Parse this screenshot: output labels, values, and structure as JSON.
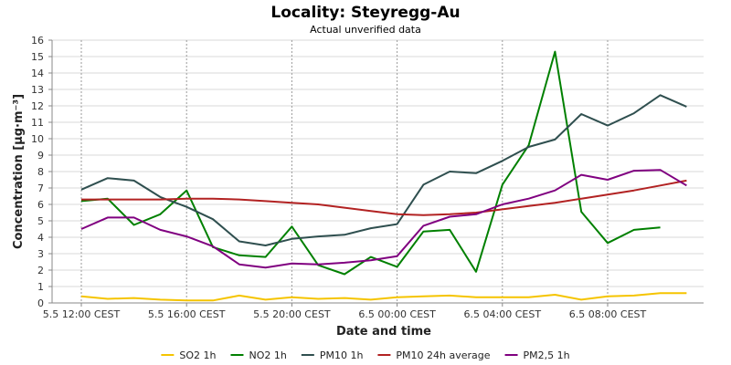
{
  "chart_data": {
    "type": "line",
    "title": "Locality: Steyregg-Au",
    "subtitle": "Actual unverified data",
    "xlabel": "Date and time",
    "ylabel": "Concentration [µg·m⁻³]",
    "ylim": [
      0,
      16
    ],
    "y_ticks": [
      0,
      1,
      2,
      3,
      4,
      5,
      6,
      7,
      8,
      9,
      10,
      11,
      12,
      13,
      14,
      15,
      16
    ],
    "x": [
      "5.5 12:00",
      "5.5 13:00",
      "5.5 14:00",
      "5.5 15:00",
      "5.5 16:00",
      "5.5 17:00",
      "5.5 18:00",
      "5.5 19:00",
      "5.5 20:00",
      "5.5 21:00",
      "5.5 22:00",
      "5.5 23:00",
      "6.5 00:00",
      "6.5 01:00",
      "6.5 02:00",
      "6.5 03:00",
      "6.5 04:00",
      "6.5 05:00",
      "6.5 06:00",
      "6.5 07:00",
      "6.5 08:00",
      "6.5 09:00",
      "6.5 10:00",
      "6.5 11:00"
    ],
    "x_ticks": [
      {
        "index": 0,
        "label": "5.5 12:00 CEST"
      },
      {
        "index": 4,
        "label": "5.5 16:00 CEST"
      },
      {
        "index": 8,
        "label": "5.5 20:00 CEST"
      },
      {
        "index": 12,
        "label": "6.5 00:00 CEST"
      },
      {
        "index": 16,
        "label": "6.5 04:00 CEST"
      },
      {
        "index": 20,
        "label": "6.5 08:00 CEST"
      }
    ],
    "grid": true,
    "legend_position": "bottom",
    "series": [
      {
        "name": "SO2 1h",
        "color": "#f5c400",
        "values": [
          0.4,
          0.25,
          0.3,
          0.2,
          0.15,
          0.15,
          0.45,
          0.2,
          0.35,
          0.25,
          0.3,
          0.2,
          0.35,
          0.4,
          0.45,
          0.35,
          0.35,
          0.35,
          0.5,
          0.2,
          0.4,
          0.45,
          0.6,
          0.6
        ]
      },
      {
        "name": "NO2 1h",
        "color": "#008000",
        "values": [
          6.2,
          6.35,
          4.75,
          5.4,
          6.85,
          3.4,
          2.9,
          2.8,
          4.65,
          2.3,
          1.75,
          2.8,
          2.2,
          4.35,
          4.45,
          1.9,
          7.2,
          9.6,
          15.3,
          5.55,
          3.65,
          4.45,
          4.6,
          null
        ]
      },
      {
        "name": "PM10 1h",
        "color": "#2f4f4f",
        "values": [
          6.9,
          7.6,
          7.45,
          6.45,
          5.85,
          5.1,
          3.75,
          3.5,
          3.9,
          4.05,
          4.15,
          4.55,
          4.8,
          7.2,
          8.0,
          7.9,
          8.65,
          9.5,
          9.95,
          11.5,
          10.8,
          11.55,
          12.65,
          11.95
        ]
      },
      {
        "name": "PM10 24h average",
        "color": "#b22222",
        "values": [
          6.3,
          6.3,
          6.3,
          6.3,
          6.35,
          6.35,
          6.3,
          6.2,
          6.1,
          6.0,
          5.8,
          5.6,
          5.4,
          5.35,
          5.4,
          5.5,
          5.7,
          5.9,
          6.1,
          6.35,
          6.6,
          6.85,
          7.15,
          7.45
        ]
      },
      {
        "name": "PM2,5 1h",
        "color": "#800080",
        "values": [
          4.5,
          5.2,
          5.2,
          4.45,
          4.05,
          3.45,
          2.35,
          2.15,
          2.4,
          2.35,
          2.45,
          2.6,
          2.85,
          4.7,
          5.25,
          5.4,
          6.0,
          6.35,
          6.85,
          7.8,
          7.5,
          8.05,
          8.1,
          7.15
        ]
      }
    ]
  }
}
